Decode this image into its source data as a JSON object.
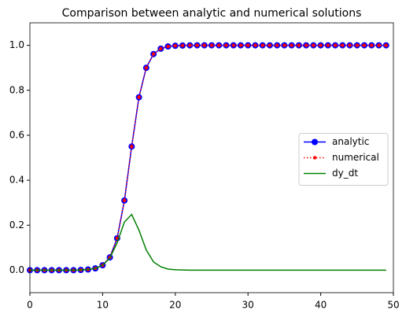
{
  "chart_data": {
    "type": "line",
    "title": "Comparison between analytic and numerical solutions",
    "x": [
      0,
      1,
      2,
      3,
      4,
      5,
      6,
      7,
      8,
      9,
      10,
      11,
      12,
      13,
      14,
      15,
      16,
      17,
      18,
      19,
      20,
      21,
      22,
      23,
      24,
      25,
      26,
      27,
      28,
      29,
      30,
      31,
      32,
      33,
      34,
      35,
      36,
      37,
      38,
      39,
      40,
      41,
      42,
      43,
      44,
      45,
      46,
      47,
      48,
      49
    ],
    "series": [
      {
        "name": "analytic",
        "color": "#0000ff",
        "linestyle": "solid",
        "marker": "circle",
        "values": [
          0,
          0,
          0,
          0,
          0,
          0,
          0,
          0.001,
          0.003,
          0.008,
          0.022,
          0.057,
          0.142,
          0.31,
          0.55,
          0.769,
          0.9,
          0.961,
          0.985,
          0.995,
          0.998,
          0.999,
          1,
          1,
          1,
          1,
          1,
          1,
          1,
          1,
          1,
          1,
          1,
          1,
          1,
          1,
          1,
          1,
          1,
          1,
          1,
          1,
          1,
          1,
          1,
          1,
          1,
          1,
          1,
          1
        ]
      },
      {
        "name": "numerical",
        "color": "#ff0000",
        "linestyle": "dotted",
        "marker": "dot",
        "values": [
          0,
          0,
          0,
          0,
          0,
          0,
          0,
          0.001,
          0.003,
          0.008,
          0.022,
          0.057,
          0.142,
          0.31,
          0.55,
          0.769,
          0.9,
          0.961,
          0.985,
          0.995,
          0.998,
          0.999,
          1,
          1,
          1,
          1,
          1,
          1,
          1,
          1,
          1,
          1,
          1,
          1,
          1,
          1,
          1,
          1,
          1,
          1,
          1,
          1,
          1,
          1,
          1,
          1,
          1,
          1,
          1,
          1
        ]
      },
      {
        "name": "dy_dt",
        "color": "#008000",
        "linestyle": "solid",
        "marker": "none",
        "values": [
          0,
          0,
          0,
          0,
          0,
          0,
          0,
          0.001,
          0.003,
          0.008,
          0.022,
          0.054,
          0.122,
          0.214,
          0.248,
          0.178,
          0.09,
          0.037,
          0.015,
          0.005,
          0.002,
          0.001,
          0,
          0,
          0,
          0,
          0,
          0,
          0,
          0,
          0,
          0,
          0,
          0,
          0,
          0,
          0,
          0,
          0,
          0,
          0,
          0,
          0,
          0,
          0,
          0,
          0,
          0,
          0,
          0
        ]
      }
    ],
    "xlim": [
      0,
      50
    ],
    "xticks": [
      0,
      10,
      20,
      30,
      40,
      50
    ],
    "ylim": [
      -0.1,
      1.1
    ],
    "yticks": [
      {
        "value": 0,
        "label": "0.0"
      },
      0.2,
      0.4,
      0.6,
      0.8,
      {
        "value": 1,
        "label": "1.0"
      }
    ],
    "legend": "center right"
  }
}
